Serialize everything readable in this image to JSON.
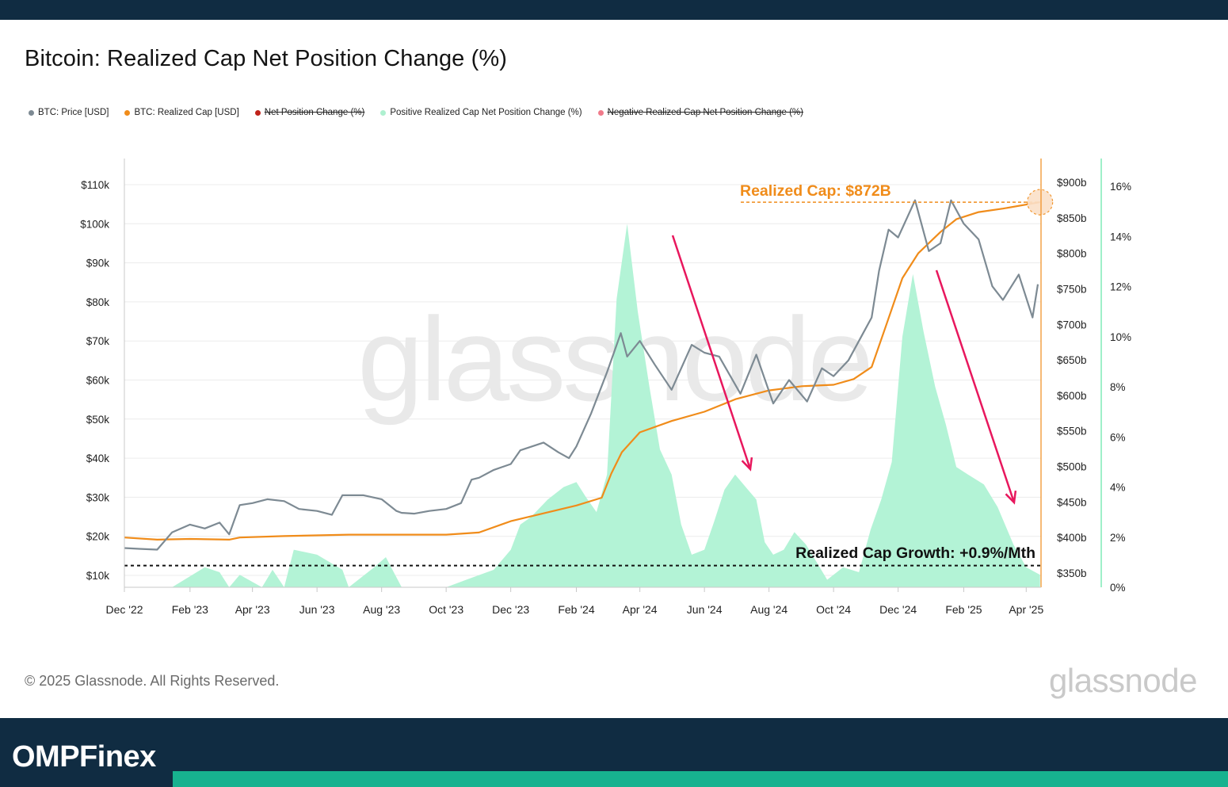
{
  "header": {
    "title": "Bitcoin: Realized Cap Net Position Change (%)"
  },
  "legend": [
    {
      "label": "BTC: Price [USD]",
      "color": "#7d8a93",
      "struck": false
    },
    {
      "label": "BTC: Realized Cap [USD]",
      "color": "#f08c1a",
      "struck": false
    },
    {
      "label": "Net Position Change (%)",
      "color": "#c0221a",
      "struck": true
    },
    {
      "label": "Positive Realized Cap Net Position Change (%)",
      "color": "#aef0d0",
      "struck": false
    },
    {
      "label": "Negative Realized Cap Net Position Change (%)",
      "color": "#f07a8a",
      "struck": true
    }
  ],
  "colors": {
    "price": "#7d8a93",
    "realized_cap": "#f08c1a",
    "positive_area": "#b3f3d6",
    "arrow": "#e8175d",
    "threshold": "#111111"
  },
  "chart_data": {
    "type": "line",
    "x_axis": {
      "ticks": [
        "Dec '22",
        "Feb '23",
        "Apr '23",
        "Jun '23",
        "Aug '23",
        "Oct '23",
        "Dec '23",
        "Feb '24",
        "Apr '24",
        "Jun '24",
        "Aug '24",
        "Oct '24",
        "Dec '24",
        "Feb '25",
        "Apr '25"
      ]
    },
    "y_left": {
      "label": "BTC Price [USD]",
      "ticks": [
        "$10k",
        "$20k",
        "$30k",
        "$40k",
        "$50k",
        "$60k",
        "$70k",
        "$80k",
        "$90k",
        "$100k",
        "$110k"
      ],
      "range": [
        10000,
        110000
      ]
    },
    "y_right_cap": {
      "ticks": [
        "$350b",
        "$400b",
        "$450b",
        "$500b",
        "$550b",
        "$600b",
        "$650b",
        "$700b",
        "$750b",
        "$800b",
        "$850b",
        "$900b"
      ],
      "range": [
        350,
        900
      ],
      "unit": "b"
    },
    "y_right_pct": {
      "ticks": [
        "0%",
        "2%",
        "4%",
        "6%",
        "8%",
        "10%",
        "12%",
        "14%",
        "16%"
      ],
      "range": [
        0,
        16
      ]
    },
    "series": [
      {
        "name": "BTC: Price [USD]",
        "axis": "left",
        "x": [
          "2022-12-01",
          "2022-12-15",
          "2023-01-01",
          "2023-01-15",
          "2023-02-01",
          "2023-02-15",
          "2023-03-01",
          "2023-03-10",
          "2023-03-20",
          "2023-04-01",
          "2023-04-15",
          "2023-05-01",
          "2023-05-15",
          "2023-06-01",
          "2023-06-15",
          "2023-06-25",
          "2023-07-15",
          "2023-08-01",
          "2023-08-15",
          "2023-08-20",
          "2023-09-01",
          "2023-09-15",
          "2023-10-01",
          "2023-10-15",
          "2023-10-25",
          "2023-11-01",
          "2023-11-15",
          "2023-12-01",
          "2023-12-10",
          "2024-01-01",
          "2024-01-15",
          "2024-01-25",
          "2024-02-01",
          "2024-02-15",
          "2024-03-01",
          "2024-03-14",
          "2024-03-20",
          "2024-04-01",
          "2024-04-15",
          "2024-05-01",
          "2024-05-20",
          "2024-06-01",
          "2024-06-15",
          "2024-07-05",
          "2024-07-20",
          "2024-08-05",
          "2024-08-20",
          "2024-09-06",
          "2024-09-20",
          "2024-10-01",
          "2024-10-15",
          "2024-10-29",
          "2024-11-06",
          "2024-11-13",
          "2024-11-22",
          "2024-12-01",
          "2024-12-17",
          "2024-12-30",
          "2025-01-10",
          "2025-01-20",
          "2025-02-01",
          "2025-02-15",
          "2025-02-28",
          "2025-03-10",
          "2025-03-25",
          "2025-04-07",
          "2025-04-12"
        ],
        "values": [
          17000,
          16800,
          16600,
          21000,
          23000,
          22000,
          23500,
          20500,
          28000,
          28500,
          29500,
          29000,
          27000,
          26500,
          25500,
          30500,
          30500,
          29500,
          26500,
          26000,
          25800,
          26500,
          27000,
          28500,
          34500,
          35000,
          37000,
          38500,
          42000,
          44000,
          41500,
          40000,
          43000,
          51500,
          62000,
          72000,
          66000,
          70000,
          64000,
          57500,
          69000,
          67000,
          66000,
          56500,
          66500,
          54000,
          60000,
          54500,
          63000,
          61000,
          65000,
          72000,
          76000,
          88000,
          98500,
          96500,
          106000,
          93000,
          95000,
          106000,
          100000,
          96000,
          84000,
          80500,
          87000,
          76000,
          84500
        ]
      },
      {
        "name": "BTC: Realized Cap [USD]",
        "axis": "right_cap",
        "unit": "b",
        "x": [
          "2022-12-01",
          "2023-01-01",
          "2023-02-01",
          "2023-03-10",
          "2023-03-20",
          "2023-05-01",
          "2023-07-01",
          "2023-08-15",
          "2023-10-01",
          "2023-11-01",
          "2023-12-01",
          "2024-01-01",
          "2024-02-01",
          "2024-02-25",
          "2024-03-05",
          "2024-03-15",
          "2024-04-01",
          "2024-05-01",
          "2024-06-01",
          "2024-07-01",
          "2024-08-01",
          "2024-09-01",
          "2024-10-01",
          "2024-10-20",
          "2024-11-06",
          "2024-11-20",
          "2024-12-05",
          "2024-12-20",
          "2025-01-10",
          "2025-01-25",
          "2025-02-15",
          "2025-03-10",
          "2025-04-14"
        ],
        "values": [
          400,
          397,
          398,
          397,
          400,
          402,
          404,
          404,
          404,
          407,
          423,
          434,
          445,
          456,
          490,
          520,
          548,
          564,
          577,
          595,
          607,
          613,
          615,
          623,
          640,
          700,
          765,
          800,
          830,
          848,
          858,
          863,
          872
        ]
      },
      {
        "name": "Positive Realized Cap Net Position Change (%)",
        "axis": "right_pct",
        "unit": "%",
        "x": [
          "2022-12-01",
          "2023-01-01",
          "2023-01-15",
          "2023-02-15",
          "2023-03-01",
          "2023-03-10",
          "2023-03-20",
          "2023-04-10",
          "2023-04-20",
          "2023-05-01",
          "2023-05-10",
          "2023-06-01",
          "2023-06-25",
          "2023-07-01",
          "2023-07-25",
          "2023-08-05",
          "2023-08-20",
          "2023-09-10",
          "2023-10-01",
          "2023-10-20",
          "2023-11-15",
          "2023-12-01",
          "2023-12-10",
          "2023-12-20",
          "2024-01-05",
          "2024-01-20",
          "2024-02-01",
          "2024-02-10",
          "2024-02-20",
          "2024-03-01",
          "2024-03-10",
          "2024-03-20",
          "2024-03-30",
          "2024-04-10",
          "2024-04-20",
          "2024-05-01",
          "2024-05-10",
          "2024-05-20",
          "2024-06-01",
          "2024-06-10",
          "2024-06-20",
          "2024-06-30",
          "2024-07-10",
          "2024-07-20",
          "2024-07-28",
          "2024-08-05",
          "2024-08-15",
          "2024-08-25",
          "2024-09-05",
          "2024-09-15",
          "2024-09-25",
          "2024-10-10",
          "2024-10-25",
          "2024-11-05",
          "2024-11-15",
          "2024-11-25",
          "2024-12-05",
          "2024-12-15",
          "2024-12-25",
          "2025-01-05",
          "2025-01-15",
          "2025-01-25",
          "2025-02-05",
          "2025-02-20",
          "2025-03-05",
          "2025-03-20",
          "2025-04-01",
          "2025-04-14"
        ],
        "values": [
          0,
          0,
          0,
          0.8,
          0.6,
          0,
          0.5,
          0,
          0.7,
          0,
          1.5,
          1.3,
          0.7,
          0,
          0.8,
          1.2,
          0,
          0,
          0,
          0.3,
          0.7,
          1.5,
          2.5,
          2.8,
          3.5,
          4.0,
          4.2,
          3.6,
          3.0,
          4.5,
          11.5,
          14.5,
          11.0,
          8.0,
          5.5,
          4.5,
          2.5,
          1.3,
          1.5,
          2.6,
          3.9,
          4.5,
          4.0,
          3.5,
          1.8,
          1.3,
          1.5,
          2.2,
          1.7,
          1.0,
          0.3,
          0.8,
          0.6,
          2.3,
          3.5,
          5.0,
          10.0,
          12.5,
          10.2,
          8.0,
          6.5,
          4.8,
          4.5,
          4.1,
          3.2,
          1.7,
          0.8,
          0.5
        ]
      }
    ],
    "annotations": [
      {
        "text": "Realized Cap: $872B",
        "color": "#f08c1a"
      },
      {
        "text": "Realized Cap Growth: +0.9%/Mth",
        "color": "#111111",
        "level": 12500
      }
    ],
    "watermark": "glassnode",
    "grid": true
  },
  "footer": {
    "copyright": "© 2025 Glassnode. All Rights Reserved.",
    "brand": "glassnode",
    "logo": "OMPFinex"
  }
}
